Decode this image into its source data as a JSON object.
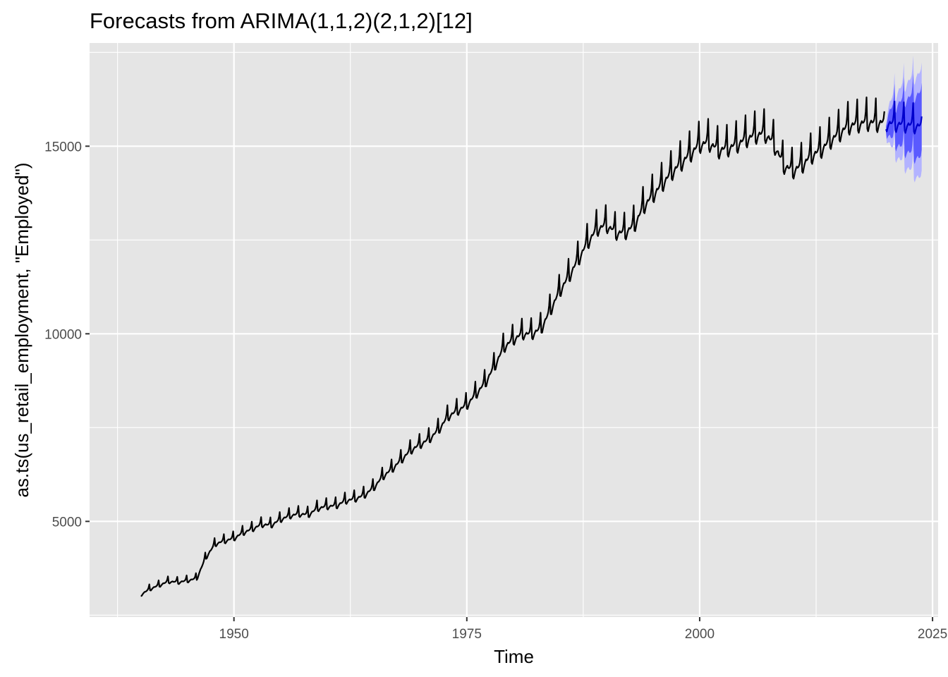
{
  "chart_data": {
    "type": "line",
    "title": "Forecasts from ARIMA(1,1,2)(2,1,2)[12]",
    "xlabel": "Time",
    "ylabel": "as.ts(us_retail_employment, \"Employed\")",
    "xlim": [
      1934.5,
      2025.6
    ],
    "ylim": [
      2450,
      17750
    ],
    "x_ticks": [
      1950,
      1975,
      2000,
      2025
    ],
    "x_tick_labels": [
      "1950",
      "1975",
      "2000",
      "2025"
    ],
    "y_ticks": [
      5000,
      10000,
      15000
    ],
    "y_tick_labels": [
      "5000",
      "10000",
      "15000"
    ],
    "grid": true,
    "series": [
      {
        "role": "observed",
        "color": "#000000",
        "frequency": "monthly",
        "x": [
          1940.0,
          1941.0,
          1942.0,
          1943.0,
          1944.0,
          1945.0,
          1946.0,
          1947.0,
          1948.0,
          1949.0,
          1950.0,
          1951.0,
          1952.0,
          1953.0,
          1954.0,
          1955.0,
          1956.0,
          1957.0,
          1958.0,
          1959.0,
          1960.0,
          1961.0,
          1962.0,
          1963.0,
          1964.0,
          1965.0,
          1966.0,
          1967.0,
          1968.0,
          1969.0,
          1970.0,
          1971.0,
          1972.0,
          1973.0,
          1974.0,
          1975.0,
          1976.0,
          1977.0,
          1978.0,
          1979.0,
          1980.0,
          1981.0,
          1982.0,
          1983.0,
          1984.0,
          1985.0,
          1986.0,
          1987.0,
          1988.0,
          1989.0,
          1990.0,
          1991.0,
          1992.0,
          1993.0,
          1994.0,
          1995.0,
          1996.0,
          1997.0,
          1998.0,
          1999.0,
          2000.0,
          2001.0,
          2002.0,
          2003.0,
          2004.0,
          2005.0,
          2006.0,
          2007.0,
          2008.0,
          2009.0,
          2010.0,
          2011.0,
          2012.0,
          2013.0,
          2014.0,
          2015.0,
          2016.0,
          2017.0,
          2018.0,
          2019.0,
          2019.9
        ],
        "y": [
          3050,
          3200,
          3300,
          3400,
          3380,
          3420,
          3480,
          4050,
          4400,
          4480,
          4550,
          4700,
          4800,
          4920,
          4900,
          5050,
          5150,
          5200,
          5180,
          5350,
          5400,
          5420,
          5550,
          5600,
          5700,
          5900,
          6200,
          6400,
          6650,
          6900,
          7050,
          7200,
          7450,
          7800,
          7950,
          8100,
          8400,
          8700,
          9150,
          9650,
          9850,
          10000,
          10000,
          10150,
          10650,
          11150,
          11550,
          12000,
          12450,
          12800,
          12900,
          12700,
          12700,
          12900,
          13400,
          13700,
          14000,
          14300,
          14550,
          14800,
          15050,
          15100,
          14900,
          14950,
          15050,
          15200,
          15300,
          15350,
          15050,
          14500,
          14350,
          14500,
          14750,
          14900,
          15150,
          15350,
          15550,
          15600,
          15650,
          15620,
          15650
        ],
        "seasonal_peak_amplitude": 0.042
      },
      {
        "role": "point-forecast",
        "color": "#0000cc",
        "x": [
          2020.0,
          2021.0,
          2022.0,
          2023.0,
          2023.9
        ],
        "y": [
          15620,
          15600,
          15580,
          15560,
          15540
        ]
      },
      {
        "role": "80% prediction interval",
        "color": "#5a5aff",
        "half_width_start": 80,
        "half_width_end": 900
      },
      {
        "role": "95% prediction interval",
        "color": "#b3b3ff",
        "half_width_start": 120,
        "half_width_end": 1450
      }
    ]
  }
}
